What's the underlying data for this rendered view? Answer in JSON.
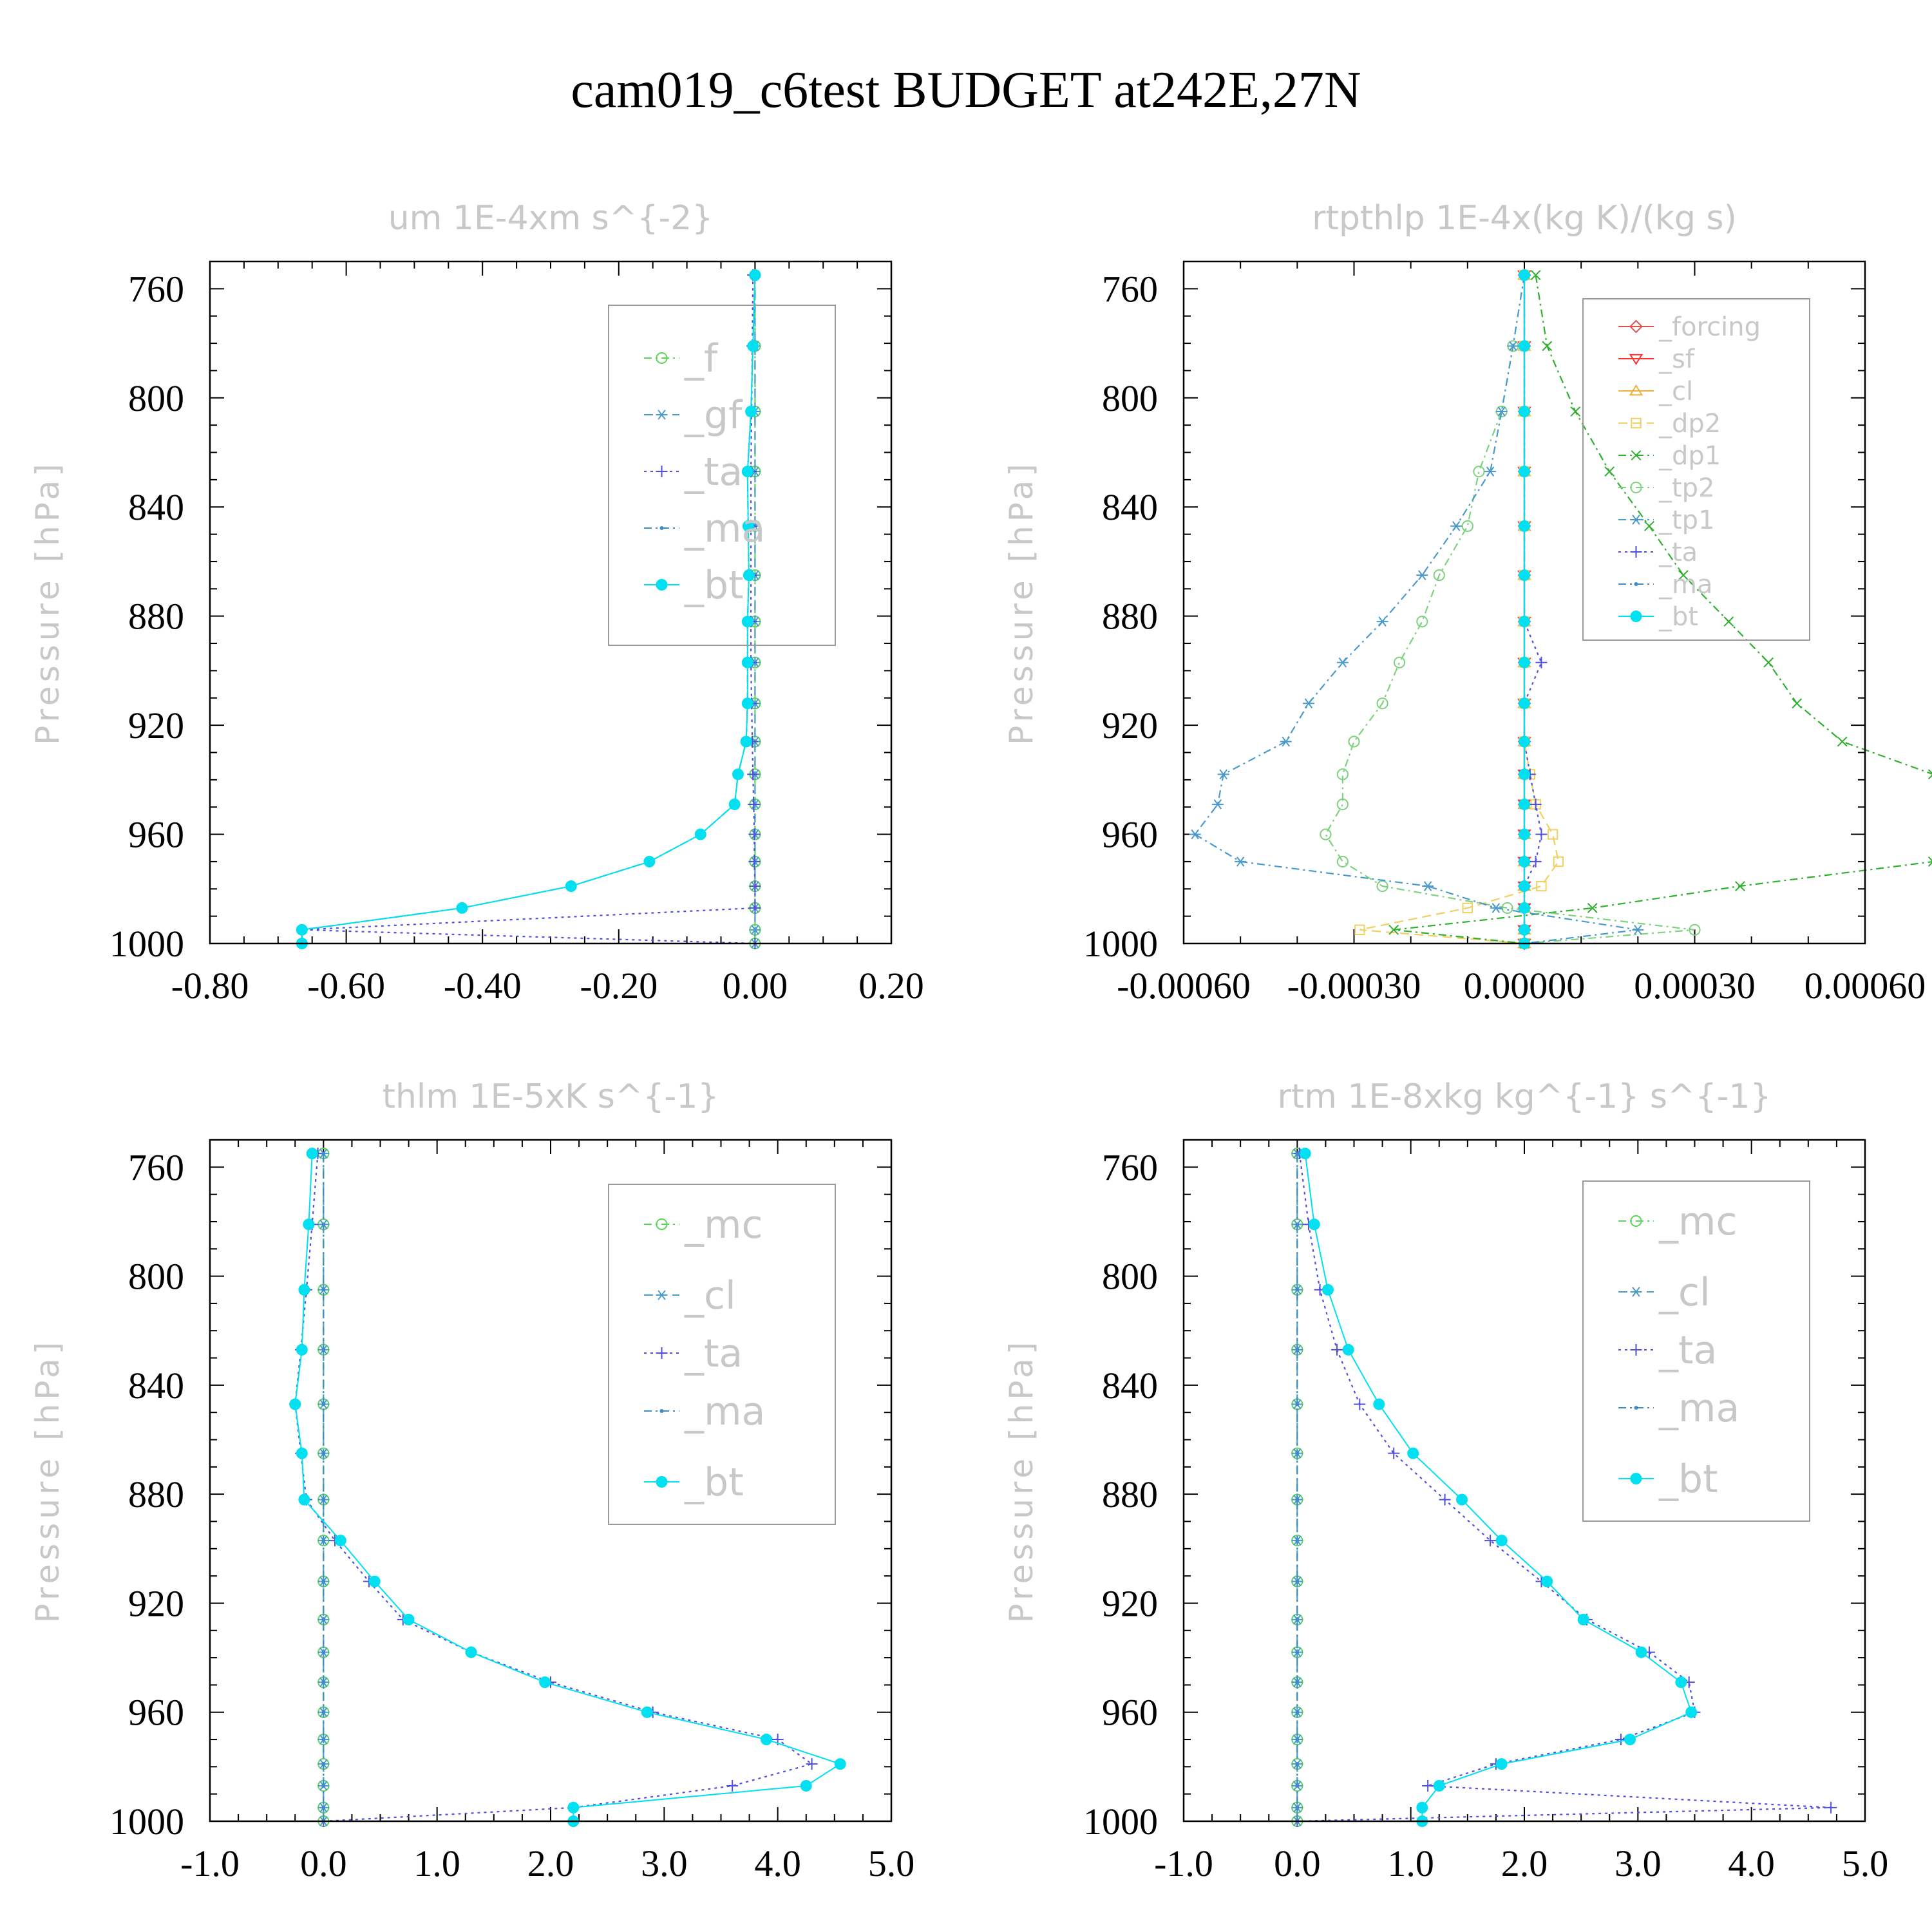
{
  "title": "cam019_c6test  BUDGET at242E,27N",
  "ylabel": "Pressure [hPa]",
  "y_ticks": [
    760,
    800,
    840,
    880,
    920,
    960,
    1000
  ],
  "pressure_levels": [
    755,
    781,
    805,
    827,
    847,
    865,
    882,
    897,
    912,
    926,
    938,
    949,
    960,
    970,
    979,
    987,
    995,
    1000
  ],
  "chart_data": [
    {
      "type": "line",
      "title": "um  1E-4xm s^{-2}",
      "ylabel": "Pressure [hPa]",
      "xlim": [
        -0.8,
        0.2
      ],
      "ylim": [
        1000,
        750
      ],
      "x_ticks": [
        "-0.80",
        "-0.60",
        "-0.40",
        "-0.20",
        "0.00",
        "0.20"
      ],
      "legend_position": "top-right",
      "legend_font": 60,
      "series": [
        {
          "name": "_f",
          "color": "#5ad65a",
          "marker": "circle",
          "dash": "12,6,3,6",
          "values": [
            0.0,
            0.0,
            0.0,
            0.0,
            0.0,
            0.0,
            0.0,
            0.0,
            0.0,
            0.0,
            0.0,
            0.0,
            0.0,
            0.0,
            0.0,
            0.0,
            0.0,
            0.0
          ]
        },
        {
          "name": "_gf",
          "color": "#4a9acc",
          "marker": "asterisk",
          "dash": "14,8",
          "values": [
            0.0,
            0.0,
            0.0,
            0.0,
            0.0,
            0.0,
            0.0,
            0.0,
            0.0,
            0.0,
            0.0,
            0.0,
            0.0,
            0.0,
            0.0,
            0.0,
            0.0,
            0.0
          ]
        },
        {
          "name": "_ta",
          "color": "#5050dd",
          "marker": "plus",
          "dash": "4,6",
          "values": [
            -0.003,
            -0.004,
            -0.005,
            -0.006,
            -0.006,
            -0.006,
            -0.006,
            -0.006,
            -0.005,
            -0.004,
            -0.003,
            -0.002,
            -0.001,
            -0.001,
            0.0,
            0.0,
            -0.665,
            0.0
          ]
        },
        {
          "name": "_ma",
          "color": "#3c8cc8",
          "marker": "dot",
          "dash": "12,6,3,6",
          "values": [
            0.0,
            -0.003,
            -0.006,
            -0.011,
            -0.01,
            -0.009,
            -0.011,
            -0.011,
            -0.011,
            -0.013,
            -0.025,
            -0.03,
            -0.08,
            -0.155,
            -0.27,
            -0.43,
            -0.665,
            -0.665
          ]
        },
        {
          "name": "_bt",
          "color": "#00e0f0",
          "marker": "filled",
          "dash": "",
          "values": [
            0.0,
            -0.003,
            -0.006,
            -0.011,
            -0.01,
            -0.009,
            -0.011,
            -0.011,
            -0.011,
            -0.013,
            -0.025,
            -0.03,
            -0.08,
            -0.155,
            -0.27,
            -0.43,
            -0.665,
            -0.665
          ]
        }
      ]
    },
    {
      "type": "line",
      "title": "rtpthlp  1E-4x(kg K)/(kg s)",
      "ylabel": "Pressure [hPa]",
      "xlim": [
        -0.0006,
        0.0006
      ],
      "ylim": [
        1000,
        750
      ],
      "x_ticks": [
        "-0.00060",
        "-0.00030",
        "0.00000",
        "0.00030",
        "0.00060"
      ],
      "legend_position": "top-right",
      "legend_font": 40,
      "series": [
        {
          "name": "_forcing",
          "color": "#e05050",
          "marker": "diamond",
          "dash": "",
          "values": [
            0,
            0,
            0,
            0,
            0,
            0,
            0,
            0,
            0,
            0,
            0,
            0,
            0,
            0,
            0,
            0,
            0,
            0
          ]
        },
        {
          "name": "_sf",
          "color": "#ff3030",
          "marker": "tri-down",
          "dash": "",
          "values": [
            0,
            0,
            0,
            0,
            0,
            0,
            0,
            0,
            0,
            0,
            0,
            0,
            0,
            0,
            0,
            0,
            0,
            0
          ]
        },
        {
          "name": "_cl",
          "color": "#f0b040",
          "marker": "tri-up",
          "dash": "",
          "values": [
            0,
            0,
            0,
            0,
            0,
            0,
            0,
            0,
            0,
            0,
            0,
            0,
            0,
            0,
            0,
            0,
            0,
            0
          ]
        },
        {
          "name": "_dp2",
          "color": "#f0d060",
          "marker": "square",
          "dash": "14,8",
          "values": [
            0.0,
            0.0,
            0.0,
            0.0,
            0.0,
            0.0,
            0.0,
            0.0,
            0.0,
            0.0,
            1e-05,
            2e-05,
            5e-05,
            6e-05,
            3e-05,
            -0.0001,
            -0.00029,
            0.0
          ]
        },
        {
          "name": "_dp1",
          "color": "#30b030",
          "marker": "cross",
          "dash": "12,6,3,6",
          "values": [
            2e-05,
            4e-05,
            9e-05,
            0.00015,
            0.00022,
            0.00028,
            0.00036,
            0.00043,
            0.00048,
            0.00056,
            0.00072,
            0.00076,
            0.00075,
            0.00072,
            0.00038,
            0.00012,
            -0.00023,
            0.0
          ]
        },
        {
          "name": "_tp2",
          "color": "#7ed27e",
          "marker": "circle",
          "dash": "12,6,3,6",
          "values": [
            0.0,
            -2e-05,
            -4e-05,
            -8e-05,
            -0.0001,
            -0.00015,
            -0.00018,
            -0.00022,
            -0.00025,
            -0.0003,
            -0.00032,
            -0.00032,
            -0.00035,
            -0.00032,
            -0.00025,
            -3e-05,
            0.0003,
            0.0
          ]
        },
        {
          "name": "_tp1",
          "color": "#4a9acc",
          "marker": "asterisk",
          "dash": "12,6,3,6",
          "values": [
            0.0,
            -2e-05,
            -4e-05,
            -6e-05,
            -0.00012,
            -0.00018,
            -0.00025,
            -0.00032,
            -0.00038,
            -0.00042,
            -0.00053,
            -0.00054,
            -0.00058,
            -0.0005,
            -0.00017,
            -5e-05,
            0.0002,
            0.0
          ]
        },
        {
          "name": "_ta",
          "color": "#5050dd",
          "marker": "plus",
          "dash": "4,6",
          "values": [
            0.0,
            0.0,
            0.0,
            0.0,
            0.0,
            0.0,
            0.0,
            3e-05,
            0.0,
            0.0,
            1e-05,
            2e-05,
            3e-05,
            2e-05,
            0.0,
            0.0,
            0.0,
            0.0
          ]
        },
        {
          "name": "_ma",
          "color": "#3c8cc8",
          "marker": "dot",
          "dash": "12,6,3,6",
          "values": [
            0,
            0,
            0,
            0,
            0,
            0,
            0,
            0,
            0,
            0,
            0,
            0,
            0,
            0,
            0,
            0,
            0,
            0
          ]
        },
        {
          "name": "_bt",
          "color": "#00e0f0",
          "marker": "filled",
          "dash": "",
          "values": [
            0,
            0,
            0,
            0,
            0,
            0,
            0,
            0,
            0,
            0,
            0,
            0,
            0,
            0,
            0,
            0,
            0,
            0
          ]
        }
      ]
    },
    {
      "type": "line",
      "title": "thlm  1E-5xK s^{-1}",
      "ylabel": "Pressure [hPa]",
      "xlim": [
        -1.0,
        5.0
      ],
      "ylim": [
        1000,
        750
      ],
      "x_ticks": [
        "-1.0",
        "0.0",
        "1.0",
        "2.0",
        "3.0",
        "4.0",
        "5.0"
      ],
      "legend_position": "top-right",
      "legend_font": 60,
      "series": [
        {
          "name": "_mc",
          "color": "#5ad65a",
          "marker": "circle",
          "dash": "12,6,3,6",
          "values": [
            0,
            0,
            0,
            0,
            0,
            0,
            0,
            0,
            0,
            0,
            0,
            0,
            0,
            0,
            0,
            0,
            0,
            0
          ]
        },
        {
          "name": "_cl",
          "color": "#4a9acc",
          "marker": "asterisk",
          "dash": "14,8",
          "values": [
            0,
            0,
            0,
            0,
            0,
            0,
            0,
            0,
            0,
            0,
            0,
            0,
            0,
            0,
            0,
            0,
            0,
            0
          ]
        },
        {
          "name": "_ta",
          "color": "#5050dd",
          "marker": "plus",
          "dash": "4,6",
          "values": [
            -0.05,
            -0.1,
            -0.15,
            -0.2,
            -0.25,
            -0.2,
            -0.15,
            0.1,
            0.4,
            0.7,
            1.3,
            2.0,
            2.9,
            4.0,
            4.3,
            3.6,
            2.2,
            0.0
          ]
        },
        {
          "name": "_ma",
          "color": "#3c8cc8",
          "marker": "dot",
          "dash": "12,6,3,6",
          "values": [
            0,
            0,
            0,
            0,
            0,
            0,
            0,
            0,
            0,
            0,
            0,
            0,
            0,
            0,
            0,
            0,
            0,
            0
          ]
        },
        {
          "name": "_bt",
          "color": "#00e0f0",
          "marker": "filled",
          "dash": "",
          "values": [
            -0.1,
            -0.13,
            -0.17,
            -0.19,
            -0.25,
            -0.19,
            -0.17,
            0.15,
            0.45,
            0.75,
            1.3,
            1.95,
            2.85,
            3.9,
            4.55,
            4.25,
            2.2,
            2.2
          ]
        }
      ]
    },
    {
      "type": "line",
      "title": "rtm  1E-8xkg kg^{-1} s^{-1}",
      "ylabel": "Pressure [hPa]",
      "xlim": [
        -1.0,
        5.0
      ],
      "ylim": [
        1000,
        750
      ],
      "x_ticks": [
        "-1.0",
        "0.0",
        "1.0",
        "2.0",
        "3.0",
        "4.0",
        "5.0"
      ],
      "legend_position": "top-right",
      "legend_font": 60,
      "series": [
        {
          "name": "_mc",
          "color": "#5ad65a",
          "marker": "circle",
          "dash": "12,6,3,6",
          "values": [
            0,
            0,
            0,
            0,
            0,
            0,
            0,
            0,
            0,
            0,
            0,
            0,
            0,
            0,
            0,
            0,
            0,
            0
          ]
        },
        {
          "name": "_cl",
          "color": "#4a9acc",
          "marker": "asterisk",
          "dash": "14,8",
          "values": [
            0,
            0,
            0,
            0,
            0,
            0,
            0,
            0,
            0,
            0,
            0,
            0,
            0,
            0,
            0,
            0,
            0,
            0
          ]
        },
        {
          "name": "_ta",
          "color": "#5050dd",
          "marker": "plus",
          "dash": "4,6",
          "values": [
            0.02,
            0.1,
            0.2,
            0.35,
            0.55,
            0.85,
            1.3,
            1.7,
            2.15,
            2.55,
            3.1,
            3.45,
            3.5,
            2.85,
            1.75,
            1.15,
            4.7,
            0.0
          ]
        },
        {
          "name": "_ma",
          "color": "#3c8cc8",
          "marker": "dot",
          "dash": "12,6,3,6",
          "values": [
            0,
            0,
            0,
            0,
            0,
            0,
            0,
            0,
            0,
            0,
            0,
            0,
            0,
            0,
            0,
            0,
            0,
            0
          ]
        },
        {
          "name": "_bt",
          "color": "#00e0f0",
          "marker": "filled",
          "dash": "",
          "values": [
            0.07,
            0.15,
            0.27,
            0.45,
            0.72,
            1.02,
            1.45,
            1.8,
            2.2,
            2.52,
            3.03,
            3.38,
            3.47,
            2.93,
            1.8,
            1.25,
            1.1,
            1.1
          ]
        }
      ]
    }
  ]
}
